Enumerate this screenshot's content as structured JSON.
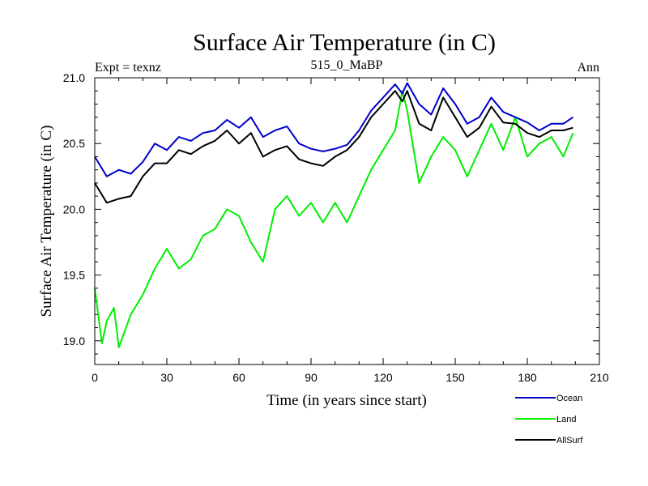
{
  "chart_data": {
    "type": "line",
    "title": "Surface Air Temperature (in C)",
    "subtitle_left": "Expt = texnz",
    "subtitle_center": "515_0_MaBP",
    "subtitle_right": "Ann",
    "xlabel": "Time (in years since start)",
    "ylabel": "Surface Air Temperature (in C)",
    "xlim": [
      0,
      210
    ],
    "ylim": [
      18.82,
      21.0
    ],
    "x_ticks": [
      0,
      30,
      60,
      90,
      120,
      150,
      180,
      210
    ],
    "x_tick_labels": [
      "0",
      "30",
      "60",
      "90",
      "120",
      "150",
      "180",
      "210"
    ],
    "y_ticks": [
      19.0,
      19.5,
      20.0,
      20.5,
      21.0
    ],
    "y_tick_labels": [
      "19.0",
      "19.5",
      "20.0",
      "20.5",
      "21.0"
    ],
    "legend_position": "bottom-right, below plot",
    "series": [
      {
        "name": "Ocean",
        "color": "#0000cc",
        "x": [
          0,
          5,
          10,
          15,
          20,
          25,
          30,
          35,
          40,
          45,
          50,
          55,
          60,
          65,
          70,
          75,
          80,
          85,
          90,
          95,
          100,
          105,
          110,
          115,
          120,
          125,
          128,
          130,
          135,
          140,
          145,
          150,
          155,
          160,
          165,
          170,
          175,
          180,
          185,
          190,
          195,
          199
        ],
        "values": [
          20.4,
          20.25,
          20.3,
          20.27,
          20.36,
          20.5,
          20.45,
          20.55,
          20.52,
          20.58,
          20.6,
          20.68,
          20.62,
          20.7,
          20.55,
          20.6,
          20.63,
          20.5,
          20.46,
          20.44,
          20.46,
          20.49,
          20.6,
          20.75,
          20.85,
          20.95,
          20.88,
          20.96,
          20.8,
          20.72,
          20.92,
          20.8,
          20.65,
          20.7,
          20.85,
          20.74,
          20.7,
          20.66,
          20.6,
          20.65,
          20.65,
          20.7
        ]
      },
      {
        "name": "Land",
        "color": "#00ee00",
        "x": [
          0,
          3,
          5,
          8,
          10,
          15,
          20,
          25,
          30,
          35,
          40,
          45,
          50,
          55,
          60,
          65,
          70,
          75,
          80,
          85,
          90,
          95,
          100,
          105,
          110,
          115,
          120,
          125,
          128,
          130,
          135,
          140,
          145,
          150,
          155,
          160,
          165,
          170,
          175,
          180,
          185,
          190,
          195,
          199
        ],
        "values": [
          19.4,
          18.98,
          19.15,
          19.25,
          18.95,
          19.2,
          19.35,
          19.55,
          19.7,
          19.55,
          19.62,
          19.8,
          19.85,
          20.0,
          19.95,
          19.75,
          19.6,
          20.0,
          20.1,
          19.95,
          20.05,
          19.9,
          20.05,
          19.9,
          20.1,
          20.3,
          20.45,
          20.6,
          20.9,
          20.75,
          20.2,
          20.4,
          20.55,
          20.45,
          20.25,
          20.45,
          20.65,
          20.45,
          20.7,
          20.4,
          20.5,
          20.55,
          20.4,
          20.58
        ]
      },
      {
        "name": "AllSurf",
        "color": "#000000",
        "x": [
          0,
          5,
          10,
          15,
          20,
          25,
          30,
          35,
          40,
          45,
          50,
          55,
          60,
          65,
          70,
          75,
          80,
          85,
          90,
          95,
          100,
          105,
          110,
          115,
          120,
          125,
          128,
          130,
          135,
          140,
          145,
          150,
          155,
          160,
          165,
          170,
          175,
          180,
          185,
          190,
          195,
          199
        ],
        "values": [
          20.2,
          20.05,
          20.08,
          20.1,
          20.25,
          20.35,
          20.35,
          20.45,
          20.42,
          20.48,
          20.52,
          20.6,
          20.5,
          20.58,
          20.4,
          20.45,
          20.48,
          20.38,
          20.35,
          20.33,
          20.4,
          20.45,
          20.55,
          20.7,
          20.8,
          20.9,
          20.82,
          20.9,
          20.65,
          20.6,
          20.85,
          20.7,
          20.55,
          20.62,
          20.78,
          20.66,
          20.65,
          20.58,
          20.55,
          20.6,
          20.6,
          20.62
        ]
      }
    ]
  }
}
